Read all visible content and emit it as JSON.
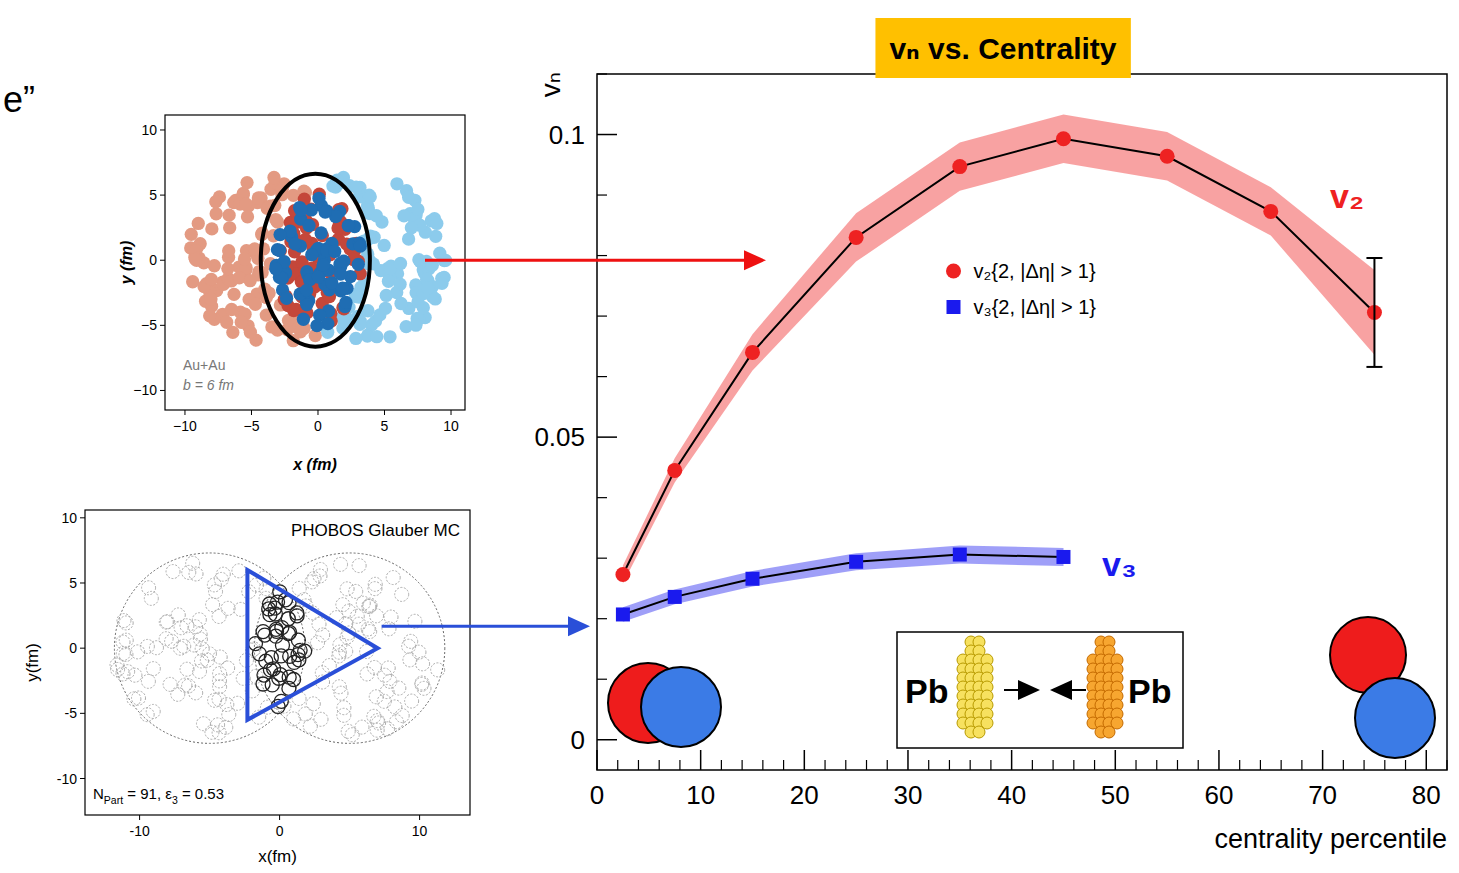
{
  "chart_data": {
    "type": "line",
    "title": "vₙ vs. Centrality",
    "x_label": "centrality percentile",
    "y_label": "vₙ",
    "x": [
      2.5,
      7.5,
      15,
      25,
      35,
      45,
      55,
      65,
      75
    ],
    "series": [
      {
        "name": "v₂{2, |Δη| > 1}",
        "label": "v₂",
        "color": "#ee2222",
        "marker": "circle",
        "line_style": "solid",
        "values": [
          0.0273,
          0.0445,
          0.064,
          0.083,
          0.0947,
          0.0993,
          0.0964,
          0.0873,
          0.0706
        ],
        "errors": [
          0.0015,
          0.002,
          0.003,
          0.004,
          0.004,
          0.004,
          0.004,
          0.004,
          0.007
        ],
        "error_bar": [
          null,
          null,
          null,
          null,
          null,
          null,
          null,
          null,
          0.009
        ]
      },
      {
        "name": "v₃{2, |Δη| > 1}",
        "label": "v₃",
        "color": "#1a1aee",
        "marker": "square",
        "line_style": "solid",
        "values": [
          0.0207,
          0.0236,
          0.0266,
          0.0294,
          0.0306,
          0.0302,
          null,
          null,
          null
        ],
        "errors": [
          0.0012,
          0.0012,
          0.0013,
          0.0014,
          0.0015,
          0.0015,
          null,
          null,
          null
        ]
      }
    ],
    "xlim": [
      0,
      82
    ],
    "xticks": [
      0,
      10,
      20,
      30,
      40,
      50,
      60,
      70,
      80
    ],
    "ylim": [
      -0.005,
      0.11
    ],
    "yticks": [
      0,
      0.05,
      0.1
    ],
    "grid": false,
    "legend": "top-right"
  },
  "insets": [
    {
      "label": "Au+Au",
      "sublabel": "b = 6 fm",
      "x_label": "x (fm)",
      "y_label": "y (fm)",
      "xlim": [
        -11.5,
        11.05
      ],
      "ylim": [
        -11.5,
        11.15
      ],
      "xticks": [
        {
          "value": -10,
          "label": "−10"
        },
        {
          "value": -5,
          "label": "−5"
        },
        0,
        5,
        10
      ],
      "yticks": [
        {
          "value": -10,
          "label": "−10"
        },
        {
          "value": -5,
          "label": "−5"
        },
        0,
        5,
        10
      ]
    },
    {
      "title": "PHOBOS Glauber MC",
      "note": [
        "N",
        "Part",
        " = 91, ε",
        "3",
        " = 0.53"
      ],
      "x_label": "x(fm)",
      "y_label": "y(fm)",
      "xlim": [
        -13.9,
        13.6
      ],
      "ylim": [
        -12.8,
        10.6
      ],
      "xticks": [
        {
          "value": -10,
          "label": "-10"
        },
        0,
        10
      ],
      "yticks": [
        {
          "value": -10,
          "label": "-10"
        },
        {
          "value": -5,
          "label": "-5"
        },
        0,
        5,
        10
      ]
    }
  ],
  "collision": {
    "left": "Pb",
    "right": "Pb"
  },
  "edge_text": "e”"
}
